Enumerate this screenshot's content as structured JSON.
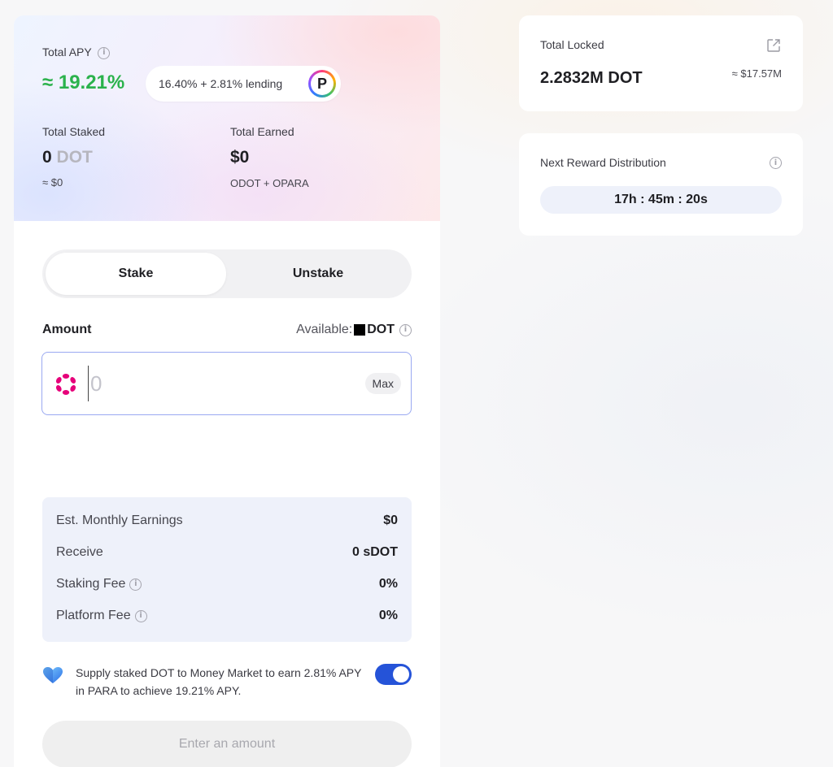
{
  "hero": {
    "apy_label": "Total APY",
    "apy_value": "≈ 19.21%",
    "apy_breakdown": "16.40% + 2.81% lending",
    "apy_logo_letter": "P",
    "staked_label": "Total Staked",
    "staked_amount": "0",
    "staked_unit": "DOT",
    "staked_usd": "≈ $0",
    "earned_label": "Total Earned",
    "earned_value": "$0",
    "earned_tokens": "ODOT + OPARA"
  },
  "tabs": [
    {
      "label": "Stake",
      "active": true
    },
    {
      "label": "Unstake",
      "active": false
    }
  ],
  "amount": {
    "label": "Amount",
    "available_label": "Available:",
    "available_unit": "DOT",
    "input_placeholder": "0",
    "max_label": "Max"
  },
  "summary": {
    "rows": [
      {
        "label": "Est. Monthly Earnings",
        "value": "$0"
      },
      {
        "label": "Receive",
        "value": "0 sDOT"
      },
      {
        "label": "Staking Fee",
        "value": "0%"
      },
      {
        "label": "Platform Fee",
        "value": "0%"
      }
    ]
  },
  "supply": {
    "text": "Supply staked DOT to Money Market to earn 2.81% APY in PARA to achieve 19.21% APY.",
    "toggle_on": true
  },
  "cta_label": "Enter an amount",
  "locked": {
    "label": "Total Locked",
    "value": "2.2832M DOT",
    "usd": "≈ $17.57M"
  },
  "distribution": {
    "label": "Next Reward Distribution",
    "countdown": "17h : 45m : 20s"
  },
  "colors": {
    "apy_green": "#2bb24c",
    "accent_blue": "#2553d8",
    "polkadot_pink": "#e6007a"
  }
}
